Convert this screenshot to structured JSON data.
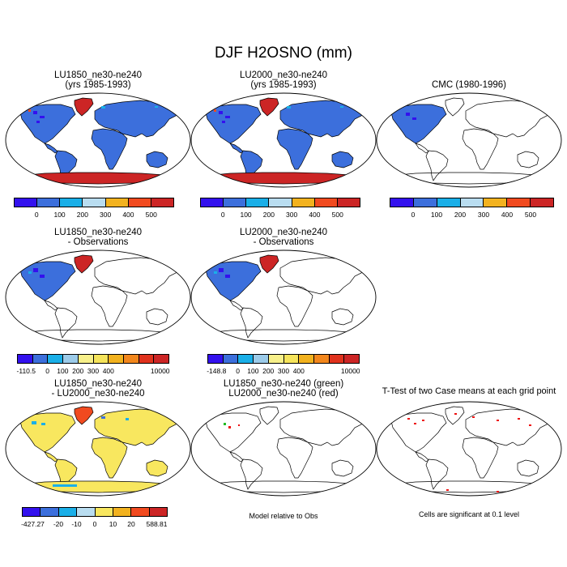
{
  "figure": {
    "title": "DJF H2OSNO (mm)"
  },
  "panels": [
    {
      "id": "p1",
      "title1": "LU1850_ne30-ne240",
      "title2": "(yrs 1985-1993)"
    },
    {
      "id": "p2",
      "title1": "LU2000_ne30-ne240",
      "title2": "(yrs 1985-1993)"
    },
    {
      "id": "p3",
      "title1": "CMC (1980-1996)",
      "title2": ""
    },
    {
      "id": "p4",
      "title1": "LU1850_ne30-ne240",
      "title2": "- Observations"
    },
    {
      "id": "p5",
      "title1": "LU2000_ne30-ne240",
      "title2": "- Observations"
    },
    {
      "id": "p7",
      "title1": "LU1850_ne30-ne240",
      "title2": "- LU2000_ne30-ne240"
    },
    {
      "id": "p8",
      "title1": "LU1850_ne30-ne240 (green)",
      "title2": "LU2000_ne30-ne240 (red)"
    },
    {
      "id": "p9",
      "title1": "T-Test of two Case means at each grid point",
      "title2": ""
    }
  ],
  "captions": {
    "model_obs": "Model relative to Obs",
    "ttest": "Cells are significant at 0.1 level"
  },
  "chart_data": [
    {
      "type": "heatmap",
      "title": "DJF H2OSNO (mm)",
      "subtitle": "LU1850_ne30-ne240 (yrs 1985-1993) / LU2000_ne30-ne240 (yrs 1985-1993) / CMC (1980-1996)",
      "projection": "global map",
      "colorbar": {
        "colors": [
          "#3311ee",
          "#3c6fdc",
          "#1aafe8",
          "#b9ddf0",
          "#f2b21f",
          "#f14a1f",
          "#cc2525"
        ],
        "labels": [
          "0",
          "100",
          "200",
          "300",
          "400",
          "500"
        ]
      }
    },
    {
      "type": "heatmap",
      "title": "Model relative to Obs",
      "subtitle": "LU1850_ne30-ne240 - Observations",
      "colorbar": {
        "colors": [
          "#3311ee",
          "#3c6fdc",
          "#1aafe8",
          "#9ccbe9",
          "#f7f08a",
          "#f5e45b",
          "#f2b21f",
          "#f2861c",
          "#e0321d",
          "#cc2525"
        ],
        "labels": [
          "-110.5",
          "0",
          "100",
          "200",
          "300",
          "400",
          "10000"
        ]
      }
    },
    {
      "type": "heatmap",
      "title": "Model relative to Obs",
      "subtitle": "LU2000_ne30-ne240 - Observations",
      "colorbar": {
        "colors": [
          "#3311ee",
          "#3c6fdc",
          "#1aafe8",
          "#9ccbe9",
          "#f7f08a",
          "#f5e45b",
          "#f2b21f",
          "#f2861c",
          "#e0321d",
          "#cc2525"
        ],
        "labels": [
          "-148.8",
          "0",
          "100",
          "200",
          "300",
          "400",
          "10000"
        ]
      }
    },
    {
      "type": "heatmap",
      "title": "LU1850_ne30-ne240 - LU2000_ne30-ne240",
      "colorbar": {
        "colors": [
          "#3311ee",
          "#3c6fdc",
          "#1aafe8",
          "#b9ddf0",
          "#f8e75f",
          "#f2b21f",
          "#f14a1f",
          "#cc2525"
        ],
        "labels": [
          "-427.27",
          "-20",
          "-10",
          "0",
          "10",
          "20",
          "588.81"
        ]
      }
    },
    {
      "type": "scatter",
      "title": "LU1850_ne30-ne240 (green) / LU2000_ne30-ne240 (red)",
      "series": [
        {
          "name": "LU1850_ne30-ne240",
          "color": "#22bb22"
        },
        {
          "name": "LU2000_ne30-ne240",
          "color": "#ee1111"
        }
      ]
    },
    {
      "type": "scatter",
      "title": "T-Test of two Case means at each grid point",
      "annotation": "Cells are significant at 0.1 level",
      "significance_level": 0.1
    }
  ]
}
